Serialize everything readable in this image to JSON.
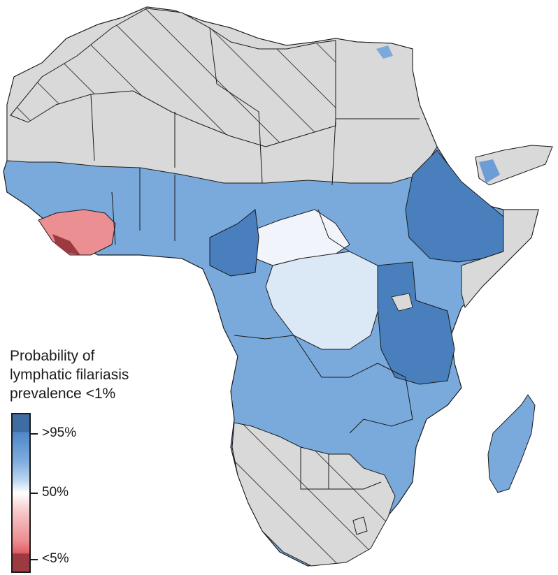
{
  "legend": {
    "title_lines": [
      "Probability of",
      "lymphatic filariasis",
      "prevalence <1%"
    ],
    "ticks": [
      ">95%",
      "50%",
      "<5%"
    ]
  },
  "colors": {
    "high": "#3d6da3",
    "mid_blue": "#7eaede",
    "neutral": "#ffffff",
    "pink": "#ec8f93",
    "low": "#9c3a42",
    "not_endemic_fill": "#d9d9d9",
    "border": "#1a1a1a"
  },
  "map_layers": {
    "hatched_regions": "hatched (not endemic)",
    "grey_regions": "no data"
  }
}
